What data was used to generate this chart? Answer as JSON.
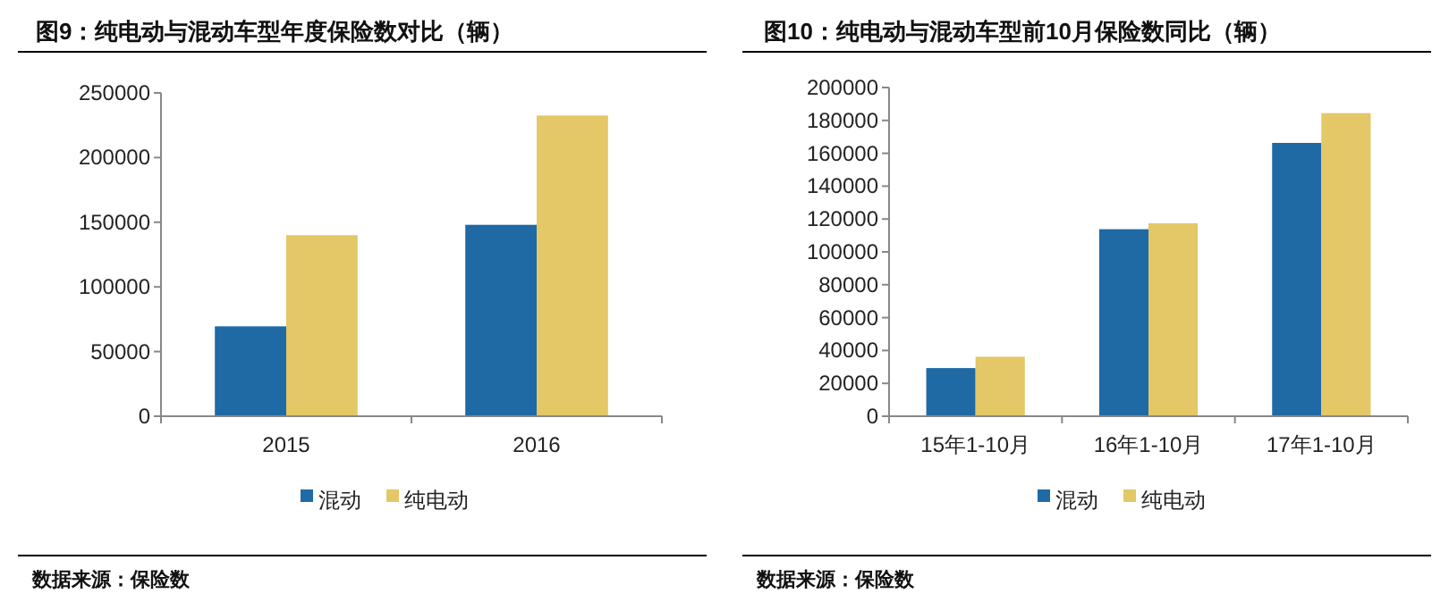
{
  "chart_data": [
    {
      "type": "bar",
      "title": "图9：纯电动与混动车型年度保险数对比（辆）",
      "categories": [
        "2015",
        "2016"
      ],
      "series": [
        {
          "name": "混动",
          "color": "#1f6aa5",
          "values": [
            69500,
            148000
          ]
        },
        {
          "name": "纯电动",
          "color": "#e4c766",
          "values": [
            140000,
            232500
          ]
        }
      ],
      "ylim": [
        0,
        250000
      ],
      "yticks": [
        0,
        50000,
        100000,
        150000,
        200000,
        250000
      ],
      "legend": "bottom",
      "annotations": [
        "数据来源：保险数"
      ]
    },
    {
      "type": "bar",
      "title": "图10：纯电动与混动车型前10月保险数同比（辆）",
      "categories": [
        "15年1-10月",
        "16年1-10月",
        "17年1-10月"
      ],
      "series": [
        {
          "name": "混动",
          "color": "#1f6aa5",
          "values": [
            29300,
            113800,
            166300
          ]
        },
        {
          "name": "纯电动",
          "color": "#e4c766",
          "values": [
            36200,
            117400,
            184400
          ]
        }
      ],
      "ylim": [
        0,
        200000
      ],
      "yticks": [
        0,
        20000,
        40000,
        60000,
        80000,
        100000,
        120000,
        140000,
        160000,
        180000,
        200000
      ],
      "legend": "bottom",
      "annotations": [
        "数据来源：保险数"
      ]
    }
  ]
}
